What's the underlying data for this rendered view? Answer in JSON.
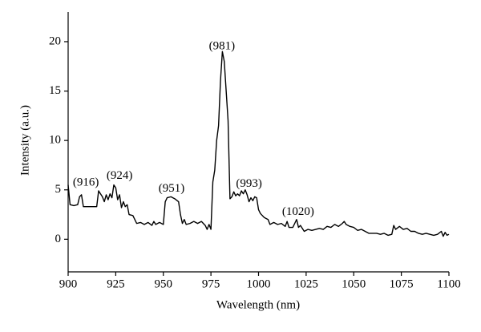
{
  "chart_data": {
    "type": "line",
    "xlabel": "Wavelength (nm)",
    "ylabel": "Intensity (a.u.)",
    "color": "#000000",
    "x": [
      900,
      901,
      903,
      905,
      906,
      907,
      908,
      910,
      913,
      915,
      916,
      918,
      919,
      920,
      921,
      922,
      923,
      924,
      925,
      926,
      927,
      928,
      929,
      930,
      931,
      932,
      934,
      935,
      936,
      938,
      940,
      942,
      944,
      945,
      946,
      948,
      950,
      951,
      952,
      954,
      956,
      958,
      959,
      960,
      961,
      962,
      964,
      966,
      968,
      970,
      972,
      973,
      974,
      975,
      976,
      977,
      978,
      979,
      980,
      981,
      982,
      983,
      984,
      985,
      986,
      987,
      988,
      989,
      990,
      991,
      992,
      993,
      994,
      995,
      996,
      997,
      998,
      999,
      1000,
      1001,
      1003,
      1005,
      1006,
      1008,
      1010,
      1012,
      1014,
      1015,
      1016,
      1018,
      1019,
      1020,
      1021,
      1022,
      1024,
      1026,
      1028,
      1030,
      1032,
      1034,
      1036,
      1038,
      1040,
      1042,
      1044,
      1045,
      1046,
      1048,
      1050,
      1052,
      1054,
      1056,
      1058,
      1060,
      1062,
      1064,
      1066,
      1068,
      1070,
      1071,
      1072,
      1074,
      1076,
      1078,
      1080,
      1082,
      1084,
      1086,
      1088,
      1090,
      1092,
      1094,
      1096,
      1097,
      1098,
      1099,
      1100
    ],
    "values": [
      5.5,
      3.5,
      3.4,
      3.5,
      4.3,
      4.5,
      3.3,
      3.3,
      3.3,
      3.3,
      4.9,
      4.3,
      3.8,
      4.5,
      4.0,
      4.6,
      4.2,
      5.5,
      5.2,
      4.0,
      4.5,
      3.2,
      3.8,
      3.3,
      3.5,
      2.5,
      2.4,
      2.0,
      1.6,
      1.7,
      1.5,
      1.7,
      1.4,
      1.8,
      1.5,
      1.7,
      1.5,
      3.8,
      4.2,
      4.3,
      4.1,
      3.8,
      2.5,
      1.6,
      2.0,
      1.5,
      1.6,
      1.8,
      1.6,
      1.8,
      1.4,
      1.0,
      1.5,
      1.0,
      5.8,
      7.0,
      10.0,
      11.5,
      16.0,
      19.0,
      18.0,
      15.0,
      12.0,
      4.1,
      4.3,
      4.8,
      4.4,
      4.6,
      4.4,
      4.9,
      4.6,
      5.0,
      4.5,
      3.8,
      4.2,
      3.9,
      4.3,
      4.2,
      3.0,
      2.6,
      2.2,
      2.0,
      1.5,
      1.7,
      1.5,
      1.6,
      1.3,
      1.8,
      1.2,
      1.2,
      1.6,
      2.0,
      1.2,
      1.4,
      0.8,
      1.0,
      0.9,
      1.0,
      1.1,
      1.0,
      1.3,
      1.2,
      1.5,
      1.3,
      1.6,
      1.8,
      1.5,
      1.3,
      1.2,
      0.9,
      1.0,
      0.8,
      0.6,
      0.6,
      0.6,
      0.5,
      0.6,
      0.4,
      0.5,
      1.4,
      1.0,
      1.3,
      1.0,
      1.1,
      0.8,
      0.8,
      0.6,
      0.5,
      0.6,
      0.5,
      0.4,
      0.5,
      0.8,
      0.3,
      0.7,
      0.4,
      0.5
    ],
    "xlim": [
      900,
      1100
    ],
    "ylim": [
      -3.3,
      23
    ],
    "xticks": [
      900,
      925,
      950,
      975,
      1000,
      1025,
      1050,
      1075,
      1100
    ],
    "yticks": [
      0,
      5,
      10,
      15,
      20
    ],
    "annotations": [
      {
        "text": "(916)",
        "x": 909.3,
        "y": 5.7
      },
      {
        "text": "(924)",
        "x": 927,
        "y": 6.4
      },
      {
        "text": "(951)",
        "x": 954.3,
        "y": 5.1
      },
      {
        "text": "(981)",
        "x": 980.8,
        "y": 19.5
      },
      {
        "text": "(993)",
        "x": 995,
        "y": 5.6
      },
      {
        "text": "(1020)",
        "x": 1020.8,
        "y": 2.75
      }
    ]
  }
}
